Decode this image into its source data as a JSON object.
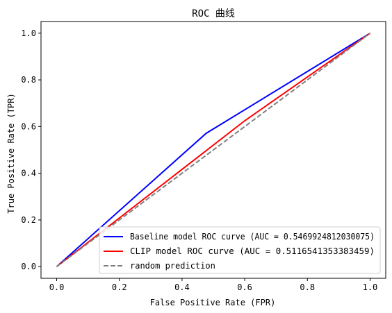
{
  "chart_data": {
    "type": "line",
    "title": "ROC 曲线",
    "xlabel": "False Positive Rate (FPR)",
    "ylabel": "True Positive Rate (TPR)",
    "xlim": [
      -0.05,
      1.05
    ],
    "ylim": [
      -0.05,
      1.05
    ],
    "xticks": [
      "0.0",
      "0.2",
      "0.4",
      "0.6",
      "0.8",
      "1.0"
    ],
    "yticks": [
      "0.0",
      "0.2",
      "0.4",
      "0.6",
      "0.8",
      "1.0"
    ],
    "grid": false,
    "legend_position": "lower-right",
    "series": [
      {
        "name": "Baseline model ROC curve (AUC = 0.5469924812030075)",
        "color": "#0000ff",
        "dash": "solid",
        "x": [
          0.0,
          0.477,
          1.0
        ],
        "y": [
          0.0,
          0.571,
          1.0
        ]
      },
      {
        "name": "CLIP model ROC curve (AUC = 0.5116541353383459)",
        "color": "#ff0000",
        "dash": "solid",
        "x": [
          0.0,
          0.6,
          1.0
        ],
        "y": [
          0.0,
          0.625,
          1.0
        ]
      },
      {
        "name": "random prediction",
        "color": "#808080",
        "dash": "dashed",
        "x": [
          0.0,
          1.0
        ],
        "y": [
          0.0,
          1.0
        ]
      }
    ]
  }
}
